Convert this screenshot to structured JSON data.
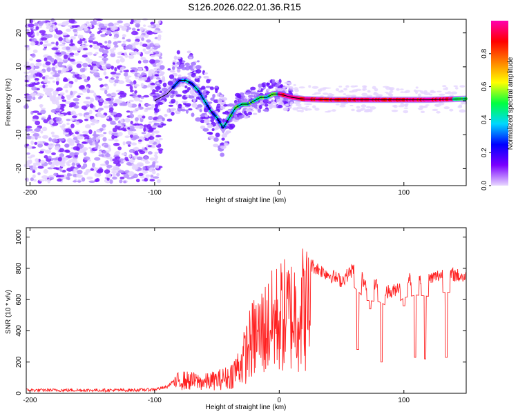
{
  "title": "S126.2026.022.01.36.R15",
  "chart_data": [
    {
      "type": "heatmap",
      "xlabel": "Height of straight line (km)",
      "ylabel": "Frequency (Hz)",
      "xlim": [
        -203,
        150
      ],
      "ylim": [
        -25,
        24
      ],
      "xticks": [
        -200,
        -100,
        0,
        100
      ],
      "yticks": [
        -20,
        -10,
        0,
        10,
        20
      ],
      "colorbar": {
        "label": "Normalized spectral amplitude",
        "range": [
          0.0,
          1.0
        ],
        "ticks": [
          0.0,
          0.2,
          0.4,
          0.6,
          0.8
        ],
        "tick_labels": [
          "0.0",
          "0.2",
          "0.4",
          "0.6",
          "0.8"
        ],
        "colormap": [
          "#e8d8ff",
          "#7a00ff",
          "#0000ff",
          "#00d8ff",
          "#00ff40",
          "#ffff00",
          "#ff8000",
          "#ff0000",
          "#ff00b0"
        ]
      },
      "ridge_trace": {
        "x": [
          -100,
          -95,
          -90,
          -85,
          -80,
          -75,
          -70,
          -65,
          -60,
          -55,
          -50,
          -45,
          -40,
          -35,
          -30,
          -25,
          -20,
          -15,
          -10,
          -5,
          0,
          10,
          20,
          40,
          60,
          80,
          100,
          120,
          140,
          150
        ],
        "y": [
          0,
          1,
          2,
          4,
          6,
          6,
          5,
          3,
          0,
          -3,
          -5,
          -8,
          -5,
          -2,
          -1,
          -1,
          0,
          1,
          1,
          2,
          2,
          1,
          0.5,
          0.3,
          0.3,
          0.3,
          0.3,
          0.3,
          0.5,
          0.6
        ]
      },
      "ridge_colored_segments": [
        {
          "x0": -85,
          "x1": -40,
          "level": 0.3
        },
        {
          "x0": -40,
          "x1": 0,
          "level": 0.45
        },
        {
          "x0": 0,
          "x1": 140,
          "level": 0.95
        },
        {
          "x0": 140,
          "x1": 150,
          "level": 0.5
        }
      ],
      "noise_region": {
        "x0": -203,
        "x1": -95,
        "fmin": -24,
        "fmax": 24,
        "level": 0.1
      }
    },
    {
      "type": "line",
      "xlabel": "Height of straight line (km)",
      "ylabel": "SNR (10 * v/v)",
      "xlim": [
        -203,
        150
      ],
      "ylim": [
        0,
        1060
      ],
      "xticks": [
        -200,
        -100,
        0,
        100
      ],
      "yticks": [
        0,
        200,
        400,
        600,
        800,
        1000
      ],
      "color": "#ff2020",
      "envelope": {
        "x": [
          -203,
          -120,
          -100,
          -90,
          -85,
          -80,
          -70,
          -60,
          -50,
          -40,
          -30,
          -25,
          -20,
          -15,
          -10,
          -5,
          0,
          10,
          20,
          30,
          40,
          50,
          60,
          70,
          80,
          90,
          100,
          110,
          120,
          130,
          140,
          150
        ],
        "y": [
          20,
          20,
          25,
          40,
          80,
          130,
          120,
          110,
          130,
          160,
          300,
          450,
          550,
          600,
          650,
          700,
          750,
          780,
          850,
          800,
          760,
          720,
          800,
          700,
          690,
          640,
          720,
          740,
          730,
          760,
          760,
          740
        ]
      },
      "dips": [
        {
          "x": 63,
          "y": 280
        },
        {
          "x": 73,
          "y": 540
        },
        {
          "x": 82,
          "y": 200
        },
        {
          "x": 100,
          "y": 560
        },
        {
          "x": 109,
          "y": 230
        },
        {
          "x": 117,
          "y": 220
        },
        {
          "x": 134,
          "y": 230
        }
      ]
    }
  ]
}
